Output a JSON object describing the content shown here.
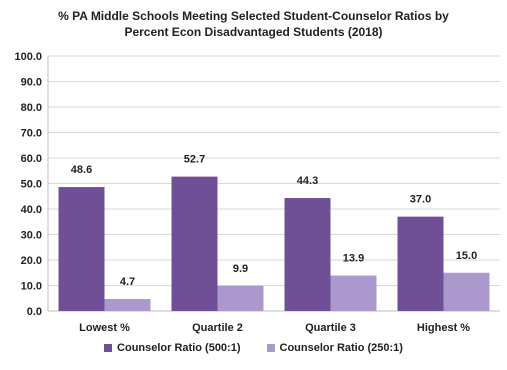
{
  "chart_data": {
    "type": "bar",
    "title": "% PA Middle Schools Meeting Selected  Student-Counselor Ratios by",
    "subtitle": "Percent Econ Disadvantaged Students (2018)",
    "categories": [
      "Lowest %",
      "Quartile 2",
      "Quartile 3",
      "Highest %"
    ],
    "series": [
      {
        "name": "Counselor Ratio (500:1)",
        "color": "#6f4f96",
        "values": [
          48.6,
          52.7,
          44.3,
          37.0
        ],
        "labels": [
          "48.6",
          "52.7",
          "44.3",
          "37.0"
        ]
      },
      {
        "name": "Counselor Ratio (250:1)",
        "color": "#ab98cc",
        "values": [
          4.7,
          9.9,
          13.9,
          15.0
        ],
        "labels": [
          "4.7",
          "9.9",
          "13.9",
          "15.0"
        ]
      }
    ],
    "ylim": [
      0,
      100
    ],
    "yticks": [
      "0.0",
      "10.0",
      "20.0",
      "30.0",
      "40.0",
      "50.0",
      "60.0",
      "70.0",
      "80.0",
      "90.0",
      "100.0"
    ],
    "grid": true,
    "legend_position": "bottom"
  }
}
